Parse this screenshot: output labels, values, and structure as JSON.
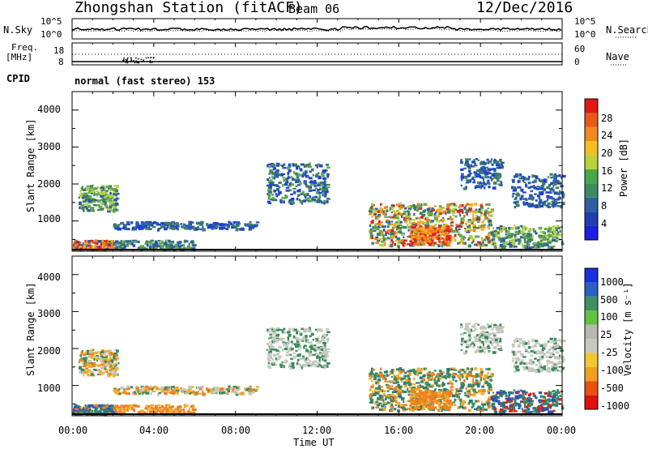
{
  "header": {
    "station": "Zhongshan Station (fitACF)",
    "beam": "Beam 06",
    "date": "12/Dec/2016",
    "cpid_label": "CPID",
    "cpid_value": "normal (fast stereo) 153"
  },
  "noise_panel": {
    "left_label": "N.Sky",
    "right_label": "N.Search",
    "ticks_left": [
      "10^5",
      "10^0"
    ],
    "ticks_right": [
      "10^5",
      "10^0"
    ]
  },
  "freq_panel": {
    "left_label_1": "Freq.",
    "left_label_2": "[MHz]",
    "right_label": "Nave",
    "ticks_left": [
      "18",
      "8"
    ],
    "ticks_right": [
      "60",
      "0"
    ]
  },
  "colors": {
    "power": [
      "#1e1ee6",
      "#1f3fb0",
      "#2e5fa0",
      "#3d8a60",
      "#4aa84a",
      "#b8d23c",
      "#f0c020",
      "#f08a1c",
      "#e85a1a",
      "#e01818"
    ],
    "velocity": [
      "#e01010",
      "#e85010",
      "#f0a020",
      "#f0c830",
      "#c8c8c0",
      "#b8b8b0",
      "#60c040",
      "#409060",
      "#2a60c0",
      "#1a30e0"
    ],
    "power_palette": [
      "#2040d0",
      "#2a5aa8",
      "#3a8060",
      "#60a850",
      "#b8d040",
      "#f0b020",
      "#f08020",
      "#e02020"
    ],
    "velocity_palette": [
      "#f08020",
      "#f0b030",
      "#c8c8c0",
      "#3a8a5a",
      "#2a7a80",
      "#2a50c0",
      "#e02010",
      "#60b040"
    ]
  },
  "chart_data": [
    {
      "type": "heatmap",
      "panel": "power",
      "xlabel": "",
      "ylabel": "Slant Range [km]",
      "ylim": [
        180,
        4500
      ],
      "y_ticks": [
        "1000",
        "2000",
        "3000",
        "4000"
      ],
      "x_ticks": [
        "00:00",
        "04:00",
        "08:00",
        "12:00",
        "16:00",
        "20:00",
        "00:00"
      ],
      "colorbar_label": "Power [dB]",
      "colorbar_ticks": [
        "4",
        "8",
        "12",
        "16",
        "20",
        "24",
        "28"
      ],
      "colorbar_range": [
        0,
        30
      ]
    },
    {
      "type": "heatmap",
      "panel": "velocity",
      "xlabel": "Time UT",
      "ylabel": "Slant Range [km]",
      "ylim": [
        180,
        4500
      ],
      "y_ticks": [
        "1000",
        "2000",
        "3000",
        "4000"
      ],
      "x_ticks": [
        "00:00",
        "04:00",
        "08:00",
        "12:00",
        "16:00",
        "20:00",
        "00:00"
      ],
      "colorbar_label": "Velocity [m s⁻¹]",
      "colorbar_ticks": [
        "1000",
        "500",
        "100",
        "25",
        "-25",
        "-100",
        "-500",
        "-1000"
      ]
    }
  ]
}
